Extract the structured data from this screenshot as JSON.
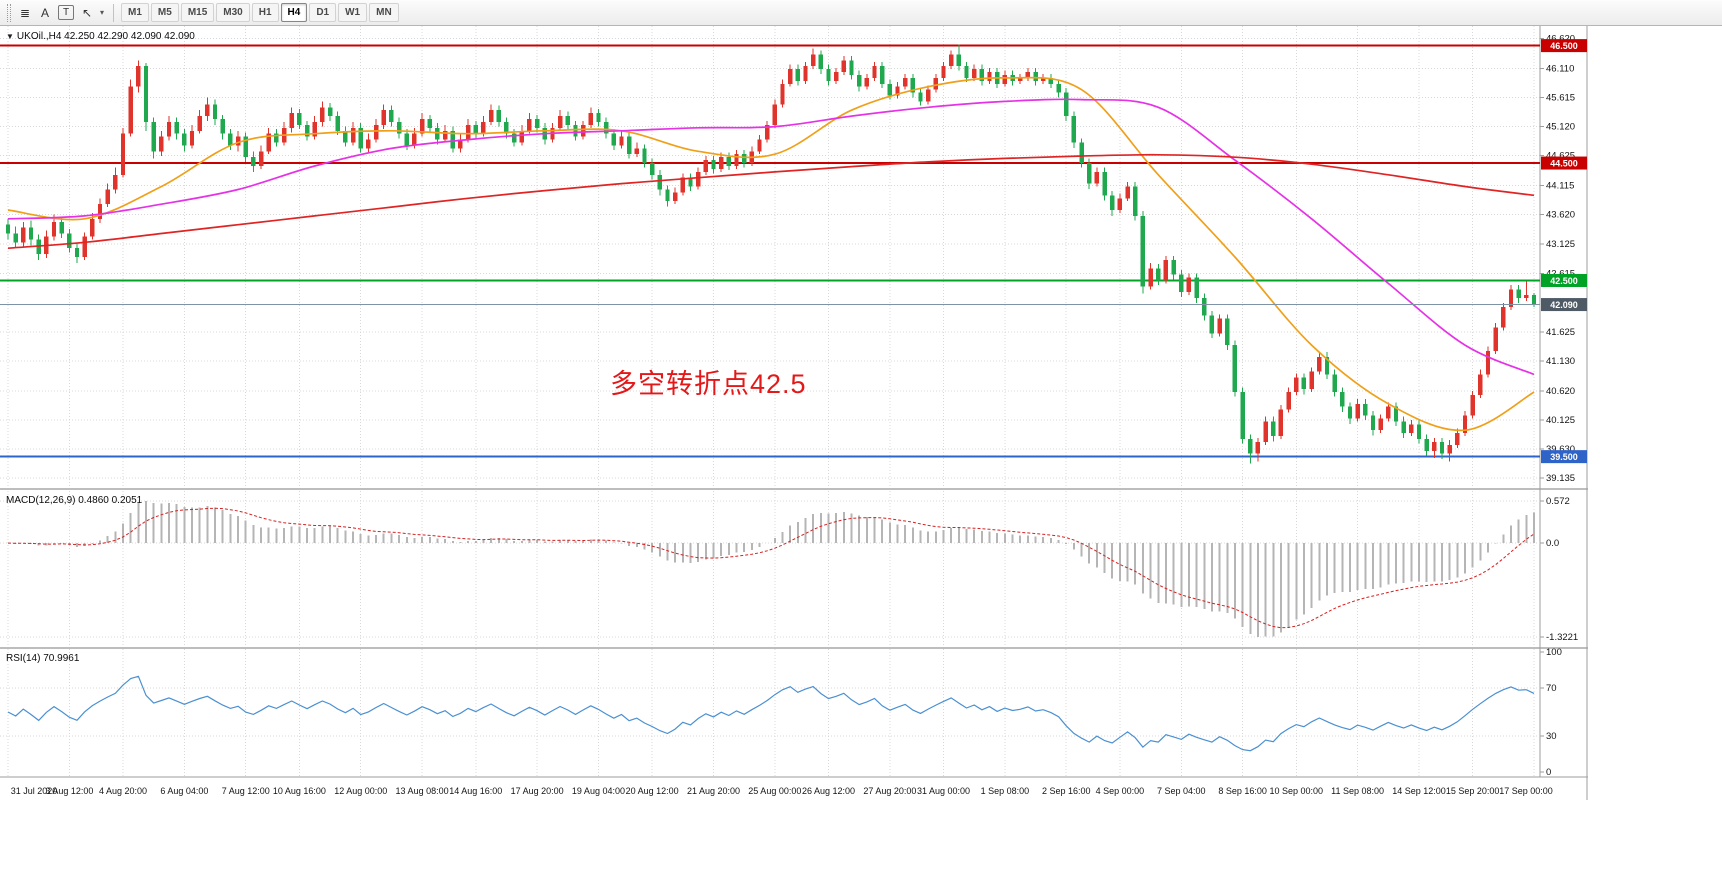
{
  "toolbar": {
    "tools": [
      {
        "name": "chart-objects-menu",
        "glyph": "≣"
      },
      {
        "name": "text-label-tool",
        "glyph": "A"
      },
      {
        "name": "text-box-tool",
        "glyph": "T",
        "boxed": true
      },
      {
        "name": "arrow-objects-tool",
        "glyph": "↖"
      },
      {
        "name": "objects-dropdown",
        "glyph": "▾",
        "small": true
      }
    ],
    "timeframes": [
      "M1",
      "M5",
      "M15",
      "M30",
      "H1",
      "H4",
      "D1",
      "W1",
      "MN"
    ],
    "active_timeframe": "H4"
  },
  "chart": {
    "dropdown_glyph": "▼",
    "symbol_line": "UKOil.,H4 42.250 42.290 42.090 42.090",
    "annotation": "多空转折点42.5",
    "y_ticks": [
      "46.620",
      "46.110",
      "45.615",
      "45.120",
      "44.625",
      "44.115",
      "43.620",
      "43.125",
      "42.615",
      "41.625",
      "41.130",
      "40.620",
      "40.125",
      "39.630",
      "39.135"
    ],
    "x_ticks": [
      "31 Jul 2020",
      "3 Aug 12:00",
      "4 Aug 20:00",
      "6 Aug 04:00",
      "7 Aug 12:00",
      "10 Aug 16:00",
      "12 Aug 00:00",
      "13 Aug 08:00",
      "14 Aug 16:00",
      "17 Aug 20:00",
      "19 Aug 04:00",
      "20 Aug 12:00",
      "21 Aug 20:00",
      "25 Aug 00:00",
      "26 Aug 12:00",
      "27 Aug 20:00",
      "31 Aug 00:00",
      "1 Sep 08:00",
      "2 Sep 16:00",
      "4 Sep 00:00",
      "7 Sep 04:00",
      "8 Sep 16:00",
      "10 Sep 00:00",
      "11 Sep 08:00",
      "14 Sep 12:00",
      "15 Sep 20:00",
      "17 Sep 00:00"
    ],
    "hlines": [
      {
        "value": 46.5,
        "label": "46.500",
        "color": "#c80000"
      },
      {
        "value": 44.5,
        "label": "44.500",
        "color": "#c80000"
      },
      {
        "value": 42.5,
        "label": "42.500",
        "color": "#00a325"
      },
      {
        "value": 39.5,
        "label": "39.500",
        "color": "#2e63c8"
      }
    ],
    "price_line": {
      "value": 42.09,
      "label": "42.090",
      "line_color": "#7e93a6",
      "badge_color": "#4e5b66"
    }
  },
  "indicators": {
    "macd": {
      "label": "MACD(12,26,9) 0.4860 0.2051",
      "params": {
        "fast": 12,
        "slow": 26,
        "signal": 9
      },
      "values": {
        "macd": "0.4860",
        "signal": "0.2051"
      },
      "y_ticks": [
        "0.572",
        "0.0",
        "-1.3221"
      ],
      "histogram_color": "#b5b5b5",
      "signal_color": "#d42222"
    },
    "rsi": {
      "label": "RSI(14) 70.9961",
      "period": 14,
      "value": "70.9961",
      "y_ticks": [
        "100",
        "70",
        "30",
        "0"
      ],
      "levels": [
        70,
        30
      ],
      "line_color": "#4a90d2"
    }
  },
  "chart_data": {
    "type": "candlestick",
    "symbol": "UKOil",
    "timeframe": "H4",
    "colors": {
      "up": "#df332b",
      "down": "#1fa84d"
    },
    "candles": [
      [
        43.45,
        43.55,
        43.2,
        43.3
      ],
      [
        43.3,
        43.42,
        43.05,
        43.15
      ],
      [
        43.15,
        43.5,
        43.08,
        43.4
      ],
      [
        43.4,
        43.52,
        43.1,
        43.2
      ],
      [
        43.2,
        43.28,
        42.85,
        42.95
      ],
      [
        42.95,
        43.35,
        42.88,
        43.25
      ],
      [
        43.25,
        43.62,
        43.18,
        43.5
      ],
      [
        43.5,
        43.58,
        43.22,
        43.3
      ],
      [
        43.3,
        43.38,
        42.98,
        43.05
      ],
      [
        43.05,
        43.15,
        42.8,
        42.9
      ],
      [
        42.9,
        43.32,
        42.85,
        43.25
      ],
      [
        43.25,
        43.65,
        43.2,
        43.55
      ],
      [
        43.55,
        43.9,
        43.48,
        43.8
      ],
      [
        43.8,
        44.15,
        43.75,
        44.05
      ],
      [
        44.05,
        44.42,
        43.98,
        44.3
      ],
      [
        44.3,
        45.1,
        44.25,
        45.0
      ],
      [
        45.0,
        45.92,
        44.95,
        45.8
      ],
      [
        45.8,
        46.25,
        45.7,
        46.15
      ],
      [
        46.15,
        46.2,
        45.05,
        45.2
      ],
      [
        45.2,
        45.28,
        44.58,
        44.7
      ],
      [
        44.7,
        45.05,
        44.62,
        44.95
      ],
      [
        44.95,
        45.3,
        44.88,
        45.2
      ],
      [
        45.2,
        45.28,
        44.9,
        45.0
      ],
      [
        45.0,
        45.08,
        44.7,
        44.8
      ],
      [
        44.8,
        45.15,
        44.75,
        45.05
      ],
      [
        45.05,
        45.4,
        45.0,
        45.3
      ],
      [
        45.3,
        45.62,
        45.22,
        45.5
      ],
      [
        45.5,
        45.58,
        45.15,
        45.25
      ],
      [
        45.25,
        45.32,
        44.9,
        45.0
      ],
      [
        45.0,
        45.08,
        44.72,
        44.8
      ],
      [
        44.8,
        45.05,
        44.7,
        44.95
      ],
      [
        44.95,
        45.02,
        44.52,
        44.6
      ],
      [
        44.6,
        44.7,
        44.35,
        44.45
      ],
      [
        44.45,
        44.8,
        44.4,
        44.7
      ],
      [
        44.7,
        45.1,
        44.65,
        45.0
      ],
      [
        45.0,
        45.08,
        44.78,
        44.85
      ],
      [
        44.85,
        45.2,
        44.8,
        45.1
      ],
      [
        45.1,
        45.45,
        45.02,
        45.35
      ],
      [
        45.35,
        45.42,
        45.08,
        45.15
      ],
      [
        45.15,
        45.22,
        44.88,
        44.95
      ],
      [
        44.95,
        45.3,
        44.9,
        45.2
      ],
      [
        45.2,
        45.55,
        45.12,
        45.45
      ],
      [
        45.45,
        45.52,
        45.22,
        45.3
      ],
      [
        45.3,
        45.38,
        44.98,
        45.05
      ],
      [
        45.05,
        45.12,
        44.78,
        44.85
      ],
      [
        44.85,
        45.2,
        44.8,
        45.1
      ],
      [
        45.1,
        45.18,
        44.68,
        44.75
      ],
      [
        44.75,
        45.0,
        44.68,
        44.9
      ],
      [
        44.9,
        45.25,
        44.85,
        45.15
      ],
      [
        45.15,
        45.5,
        45.08,
        45.4
      ],
      [
        45.4,
        45.48,
        45.12,
        45.2
      ],
      [
        45.2,
        45.28,
        44.92,
        45.0
      ],
      [
        45.0,
        45.08,
        44.72,
        44.8
      ],
      [
        44.8,
        45.1,
        44.75,
        45.0
      ],
      [
        45.0,
        45.35,
        44.95,
        45.25
      ],
      [
        45.25,
        45.32,
        45.02,
        45.1
      ],
      [
        45.1,
        45.18,
        44.82,
        44.9
      ],
      [
        44.9,
        45.15,
        44.85,
        45.05
      ],
      [
        45.05,
        45.12,
        44.68,
        44.75
      ],
      [
        44.75,
        45.0,
        44.68,
        44.9
      ],
      [
        44.9,
        45.25,
        44.85,
        45.15
      ],
      [
        45.15,
        45.22,
        44.92,
        45.0
      ],
      [
        45.0,
        45.3,
        44.95,
        45.2
      ],
      [
        45.2,
        45.5,
        45.15,
        45.4
      ],
      [
        45.4,
        45.48,
        45.12,
        45.2
      ],
      [
        45.2,
        45.28,
        44.92,
        45.0
      ],
      [
        45.0,
        45.08,
        44.78,
        44.85
      ],
      [
        44.85,
        45.15,
        44.8,
        45.05
      ],
      [
        45.05,
        45.35,
        45.0,
        45.25
      ],
      [
        45.25,
        45.32,
        45.02,
        45.1
      ],
      [
        45.1,
        45.18,
        44.82,
        44.9
      ],
      [
        44.9,
        45.18,
        44.85,
        45.1
      ],
      [
        45.1,
        45.4,
        45.05,
        45.3
      ],
      [
        45.3,
        45.38,
        45.08,
        45.15
      ],
      [
        45.15,
        45.22,
        44.88,
        44.95
      ],
      [
        44.95,
        45.22,
        44.9,
        45.15
      ],
      [
        45.15,
        45.45,
        45.1,
        45.35
      ],
      [
        45.35,
        45.42,
        45.12,
        45.2
      ],
      [
        45.2,
        45.28,
        44.92,
        45.0
      ],
      [
        45.0,
        45.08,
        44.72,
        44.8
      ],
      [
        44.8,
        45.05,
        44.75,
        44.95
      ],
      [
        44.95,
        45.02,
        44.58,
        44.65
      ],
      [
        44.65,
        44.85,
        44.6,
        44.75
      ],
      [
        44.75,
        44.82,
        44.42,
        44.5
      ],
      [
        44.5,
        44.58,
        44.22,
        44.3
      ],
      [
        44.3,
        44.38,
        43.95,
        44.05
      ],
      [
        44.05,
        44.12,
        43.76,
        43.85
      ],
      [
        43.85,
        44.08,
        43.8,
        44.0
      ],
      [
        44.0,
        44.32,
        43.95,
        44.25
      ],
      [
        44.25,
        44.32,
        44.02,
        44.1
      ],
      [
        44.1,
        44.42,
        44.05,
        44.35
      ],
      [
        44.35,
        44.62,
        44.3,
        44.55
      ],
      [
        44.55,
        44.62,
        44.32,
        44.4
      ],
      [
        44.4,
        44.68,
        44.35,
        44.6
      ],
      [
        44.6,
        44.68,
        44.38,
        44.45
      ],
      [
        44.45,
        44.72,
        44.4,
        44.65
      ],
      [
        44.65,
        44.72,
        44.42,
        44.5
      ],
      [
        44.5,
        44.78,
        44.45,
        44.7
      ],
      [
        44.7,
        44.98,
        44.65,
        44.9
      ],
      [
        44.9,
        45.22,
        44.85,
        45.15
      ],
      [
        45.15,
        45.58,
        45.1,
        45.5
      ],
      [
        45.5,
        45.92,
        45.45,
        45.85
      ],
      [
        45.85,
        46.18,
        45.8,
        46.1
      ],
      [
        46.1,
        46.18,
        45.82,
        45.9
      ],
      [
        45.9,
        46.22,
        45.85,
        46.15
      ],
      [
        46.15,
        46.45,
        46.1,
        46.35
      ],
      [
        46.35,
        46.42,
        46.02,
        46.1
      ],
      [
        46.1,
        46.18,
        45.82,
        45.9
      ],
      [
        45.9,
        46.12,
        45.85,
        46.05
      ],
      [
        46.05,
        46.32,
        46.0,
        46.25
      ],
      [
        46.25,
        46.32,
        45.92,
        46.0
      ],
      [
        46.0,
        46.08,
        45.72,
        45.8
      ],
      [
        45.8,
        46.02,
        45.75,
        45.95
      ],
      [
        45.95,
        46.22,
        45.9,
        46.15
      ],
      [
        46.15,
        46.22,
        45.78,
        45.85
      ],
      [
        45.85,
        45.92,
        45.58,
        45.65
      ],
      [
        45.65,
        45.88,
        45.6,
        45.8
      ],
      [
        45.8,
        46.02,
        45.75,
        45.95
      ],
      [
        45.95,
        46.02,
        45.62,
        45.7
      ],
      [
        45.7,
        45.78,
        45.48,
        45.55
      ],
      [
        45.55,
        45.82,
        45.5,
        45.75
      ],
      [
        45.75,
        46.02,
        45.7,
        45.95
      ],
      [
        45.95,
        46.22,
        45.9,
        46.15
      ],
      [
        46.15,
        46.42,
        46.1,
        46.35
      ],
      [
        46.35,
        46.52,
        46.08,
        46.15
      ],
      [
        46.15,
        46.22,
        45.88,
        45.95
      ],
      [
        45.95,
        46.18,
        45.9,
        46.1
      ],
      [
        46.1,
        46.18,
        45.82,
        45.9
      ],
      [
        45.9,
        46.12,
        45.85,
        46.05
      ],
      [
        46.05,
        46.12,
        45.78,
        45.85
      ],
      [
        45.85,
        46.08,
        45.8,
        46.0
      ],
      [
        46.0,
        46.08,
        45.82,
        45.9
      ],
      [
        45.9,
        46.02,
        45.85,
        45.95
      ],
      [
        45.95,
        46.12,
        45.9,
        46.05
      ],
      [
        46.05,
        46.12,
        45.82,
        45.9
      ],
      [
        45.9,
        46.02,
        45.85,
        45.95
      ],
      [
        45.95,
        46.02,
        45.78,
        45.85
      ],
      [
        45.85,
        45.92,
        45.62,
        45.7
      ],
      [
        45.7,
        45.78,
        45.22,
        45.3
      ],
      [
        45.3,
        45.38,
        44.76,
        44.85
      ],
      [
        44.85,
        44.92,
        44.42,
        44.5
      ],
      [
        44.5,
        44.58,
        44.06,
        44.15
      ],
      [
        44.15,
        44.42,
        44.1,
        44.35
      ],
      [
        44.35,
        44.42,
        43.86,
        43.95
      ],
      [
        43.95,
        44.02,
        43.6,
        43.7
      ],
      [
        43.7,
        43.98,
        43.65,
        43.9
      ],
      [
        43.9,
        44.18,
        43.85,
        44.1
      ],
      [
        44.1,
        44.18,
        43.52,
        43.6
      ],
      [
        43.6,
        43.68,
        42.28,
        42.4
      ],
      [
        42.4,
        42.8,
        42.35,
        42.7
      ],
      [
        42.7,
        42.78,
        42.42,
        42.5
      ],
      [
        42.5,
        42.92,
        42.45,
        42.85
      ],
      [
        42.85,
        42.92,
        42.52,
        42.6
      ],
      [
        42.6,
        42.68,
        42.22,
        42.3
      ],
      [
        42.3,
        42.62,
        42.25,
        42.55
      ],
      [
        42.55,
        42.62,
        42.12,
        42.2
      ],
      [
        42.2,
        42.28,
        41.82,
        41.9
      ],
      [
        41.9,
        41.98,
        41.52,
        41.6
      ],
      [
        41.6,
        41.92,
        41.55,
        41.85
      ],
      [
        41.85,
        41.92,
        41.32,
        41.4
      ],
      [
        41.4,
        41.48,
        40.52,
        40.6
      ],
      [
        40.6,
        40.68,
        39.72,
        39.8
      ],
      [
        39.8,
        39.88,
        39.38,
        39.55
      ],
      [
        39.55,
        39.82,
        39.42,
        39.75
      ],
      [
        39.75,
        40.18,
        39.7,
        40.1
      ],
      [
        40.1,
        40.18,
        39.76,
        39.85
      ],
      [
        39.85,
        40.38,
        39.8,
        40.3
      ],
      [
        40.3,
        40.68,
        40.25,
        40.6
      ],
      [
        40.6,
        40.92,
        40.55,
        40.85
      ],
      [
        40.85,
        40.92,
        40.56,
        40.65
      ],
      [
        40.65,
        41.02,
        40.6,
        40.95
      ],
      [
        40.95,
        41.28,
        40.9,
        41.2
      ],
      [
        41.2,
        41.28,
        40.82,
        40.9
      ],
      [
        40.9,
        40.98,
        40.52,
        40.6
      ],
      [
        40.6,
        40.68,
        40.26,
        40.35
      ],
      [
        40.35,
        40.42,
        40.06,
        40.15
      ],
      [
        40.15,
        40.48,
        40.1,
        40.4
      ],
      [
        40.4,
        40.48,
        40.12,
        40.2
      ],
      [
        40.2,
        40.28,
        39.86,
        39.95
      ],
      [
        39.95,
        40.22,
        39.9,
        40.15
      ],
      [
        40.15,
        40.42,
        40.1,
        40.35
      ],
      [
        40.35,
        40.42,
        40.02,
        40.1
      ],
      [
        40.1,
        40.18,
        39.82,
        39.9
      ],
      [
        39.9,
        40.12,
        39.85,
        40.05
      ],
      [
        40.05,
        40.12,
        39.72,
        39.8
      ],
      [
        39.8,
        39.88,
        39.52,
        39.6
      ],
      [
        39.6,
        39.82,
        39.48,
        39.75
      ],
      [
        39.75,
        39.82,
        39.46,
        39.55
      ],
      [
        39.55,
        39.78,
        39.42,
        39.7
      ],
      [
        39.7,
        39.98,
        39.65,
        39.9
      ],
      [
        39.9,
        40.28,
        39.85,
        40.2
      ],
      [
        40.2,
        40.62,
        40.15,
        40.55
      ],
      [
        40.55,
        40.98,
        40.5,
        40.9
      ],
      [
        40.9,
        41.38,
        40.85,
        41.3
      ],
      [
        41.3,
        41.78,
        41.25,
        41.7
      ],
      [
        41.7,
        42.12,
        41.65,
        42.05
      ],
      [
        42.05,
        42.42,
        42.0,
        42.35
      ],
      [
        42.35,
        42.42,
        42.12,
        42.2
      ],
      [
        42.2,
        42.48,
        42.15,
        42.25
      ],
      [
        42.25,
        42.29,
        42.05,
        42.09
      ]
    ],
    "moving_averages": [
      {
        "name": "ma-fast-line",
        "color": "#f0a018",
        "sample_step": 10,
        "points": [
          43.7,
          43.55,
          44.1,
          44.85,
          45.0,
          45.05,
          45.0,
          45.05,
          45.05,
          44.7,
          44.65,
          45.4,
          45.8,
          45.95,
          45.75,
          44.3,
          42.9,
          41.4,
          40.4,
          39.95,
          40.6
        ]
      },
      {
        "name": "ma-medium-line",
        "color": "#e632e6",
        "sample_step": 10,
        "points": [
          43.55,
          43.6,
          43.8,
          44.05,
          44.45,
          44.75,
          44.9,
          45.0,
          45.05,
          45.1,
          45.12,
          45.3,
          45.45,
          45.55,
          45.58,
          45.45,
          44.55,
          43.55,
          42.45,
          41.4,
          40.9
        ]
      },
      {
        "name": "ma-slow-line",
        "color": "#e02424",
        "sample_step": 10,
        "points": [
          43.05,
          43.15,
          43.3,
          43.45,
          43.6,
          43.75,
          43.9,
          44.03,
          44.15,
          44.25,
          44.35,
          44.44,
          44.52,
          44.58,
          44.62,
          44.64,
          44.6,
          44.48,
          44.3,
          44.1,
          43.95
        ]
      }
    ]
  }
}
